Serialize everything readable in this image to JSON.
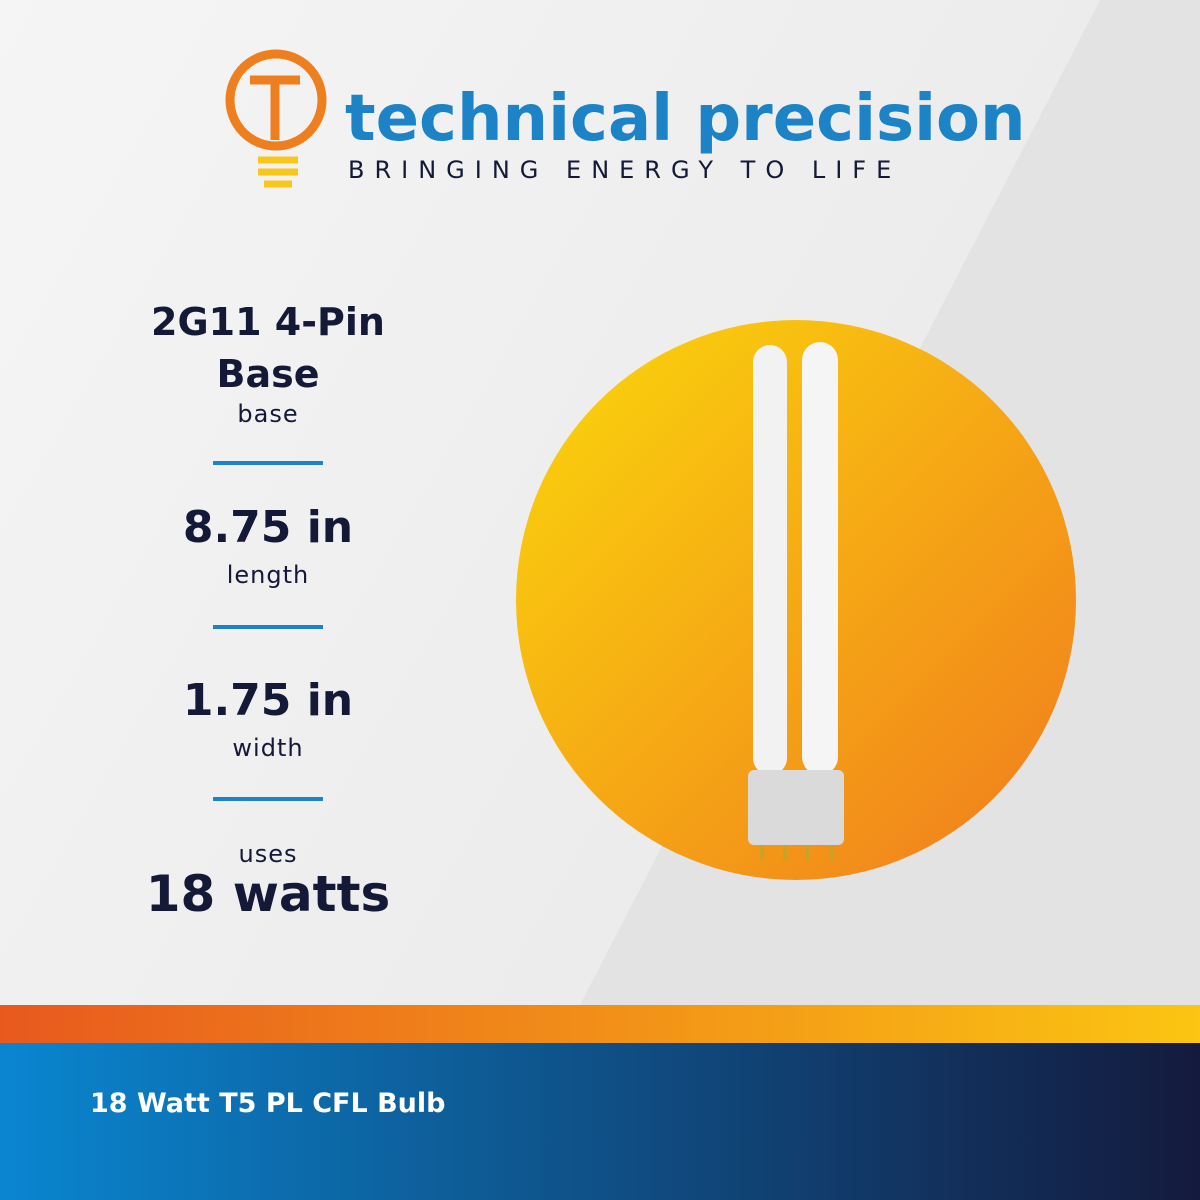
{
  "brand": {
    "name": "technical precision",
    "tagline": "BRINGING ENERGY TO LIFE"
  },
  "specs": [
    {
      "value": "2G11 4-Pin Base",
      "label": "base"
    },
    {
      "value": "8.75 in",
      "label": "length"
    },
    {
      "value": "1.75 in",
      "label": "width"
    },
    {
      "label": "uses",
      "value": "18 watts"
    }
  ],
  "footer": {
    "title": "18 Watt T5 PL CFL Bulb"
  }
}
